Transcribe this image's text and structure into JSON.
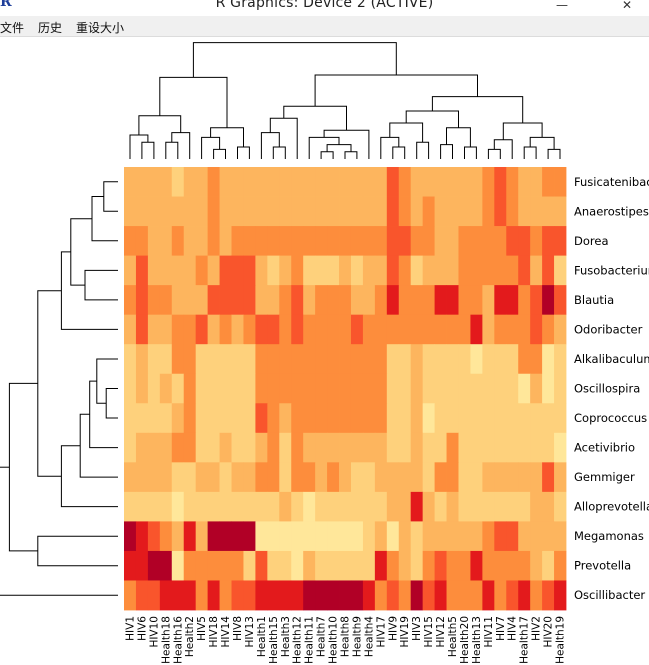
{
  "window": {
    "title": "R Graphics: Device 2 (ACTIVE)",
    "minimize_glyph": "—",
    "close_glyph": "✕"
  },
  "menu": {
    "items": [
      "文件",
      "历史",
      "重设大小"
    ]
  },
  "icons": {
    "app": "r-logo-icon"
  },
  "chart_data": {
    "type": "heatmap",
    "row_labels": [
      "Fusicatenibacter",
      "Anaerostipes",
      "Dorea",
      "Fusobacterium",
      "Blautia",
      "Odoribacter",
      "Alkalibaculum",
      "Oscillospira",
      "Coprococcus",
      "Acetivibrio",
      "Gemmiger",
      "Alloprevotella",
      "Megamonas",
      "Prevotella",
      "Oscillibacter"
    ],
    "col_labels": [
      "HIV1",
      "HIV6",
      "HIV10",
      "Health18",
      "Health16",
      "Health2",
      "HIV5",
      "HIV18",
      "HIV14",
      "HIV8",
      "HIV13",
      "Health1",
      "Health15",
      "Health3",
      "Health12",
      "Health11",
      "Health7",
      "Health10",
      "Health8",
      "Health9",
      "Health4",
      "HIV17",
      "HIV9",
      "HIV19",
      "HIV3",
      "HIV15",
      "HIV12",
      "Health5",
      "Health20",
      "Health13",
      "HIV11",
      "HIV7",
      "HIV4",
      "Health17",
      "HIV2",
      "HIV20",
      "Health19"
    ],
    "color_scale": {
      "levels": 7,
      "colors": [
        "#ffffcc",
        "#ffe79a",
        "#fed17c",
        "#fdb55e",
        "#fd8d3c",
        "#f9552c",
        "#e31a1c",
        "#b10026"
      ]
    },
    "values": [
      [
        3,
        3,
        3,
        3,
        2,
        3,
        3,
        4,
        3,
        3,
        3,
        3,
        3,
        3,
        3,
        3,
        3,
        3,
        3,
        3,
        3,
        3,
        5,
        4,
        3,
        3,
        3,
        3,
        3,
        3,
        4,
        5,
        4,
        3,
        3,
        4,
        4
      ],
      [
        3,
        3,
        3,
        3,
        3,
        3,
        3,
        4,
        3,
        3,
        3,
        3,
        3,
        3,
        3,
        3,
        3,
        3,
        3,
        3,
        3,
        3,
        5,
        4,
        3,
        4,
        3,
        3,
        3,
        3,
        4,
        5,
        4,
        3,
        3,
        3,
        3
      ],
      [
        4,
        4,
        3,
        3,
        4,
        3,
        3,
        4,
        3,
        4,
        4,
        4,
        4,
        4,
        4,
        4,
        4,
        4,
        4,
        4,
        4,
        4,
        5,
        5,
        4,
        4,
        3,
        3,
        4,
        4,
        4,
        4,
        5,
        5,
        4,
        5,
        5
      ],
      [
        3,
        5,
        3,
        3,
        3,
        3,
        4,
        3,
        5,
        5,
        5,
        3,
        2,
        3,
        4,
        2,
        2,
        2,
        3,
        2,
        3,
        3,
        5,
        4,
        2,
        3,
        3,
        3,
        4,
        4,
        4,
        4,
        4,
        5,
        3,
        5,
        2
      ],
      [
        4,
        5,
        4,
        4,
        3,
        3,
        3,
        5,
        5,
        5,
        5,
        3,
        3,
        4,
        5,
        3,
        4,
        4,
        4,
        3,
        3,
        4,
        6,
        4,
        4,
        4,
        6,
        6,
        4,
        4,
        3,
        6,
        6,
        4,
        5,
        7,
        5
      ],
      [
        3,
        5,
        3,
        3,
        4,
        4,
        5,
        3,
        4,
        3,
        4,
        5,
        5,
        4,
        5,
        4,
        4,
        4,
        4,
        5,
        4,
        4,
        4,
        4,
        4,
        4,
        4,
        4,
        4,
        6,
        3,
        4,
        4,
        4,
        5,
        4,
        3
      ],
      [
        2,
        3,
        2,
        2,
        4,
        4,
        2,
        2,
        2,
        2,
        2,
        4,
        4,
        4,
        4,
        4,
        4,
        4,
        4,
        4,
        4,
        4,
        2,
        2,
        3,
        2,
        2,
        2,
        2,
        1,
        2,
        2,
        2,
        4,
        4,
        1,
        2
      ],
      [
        2,
        3,
        2,
        3,
        2,
        4,
        2,
        2,
        2,
        2,
        2,
        4,
        4,
        4,
        4,
        4,
        4,
        4,
        4,
        4,
        4,
        4,
        2,
        2,
        3,
        2,
        2,
        2,
        2,
        2,
        2,
        2,
        2,
        1,
        3,
        1,
        2
      ],
      [
        2,
        2,
        2,
        2,
        3,
        4,
        2,
        2,
        2,
        2,
        2,
        5,
        4,
        3,
        4,
        4,
        4,
        4,
        4,
        4,
        4,
        4,
        2,
        2,
        3,
        1,
        2,
        2,
        2,
        2,
        2,
        2,
        2,
        2,
        2,
        2,
        2
      ],
      [
        2,
        3,
        3,
        3,
        4,
        4,
        2,
        2,
        3,
        2,
        2,
        3,
        4,
        2,
        4,
        3,
        3,
        3,
        3,
        3,
        3,
        3,
        2,
        2,
        3,
        2,
        2,
        4,
        2,
        2,
        2,
        2,
        2,
        2,
        2,
        2,
        1
      ],
      [
        3,
        3,
        3,
        3,
        2,
        2,
        3,
        3,
        2,
        3,
        3,
        4,
        4,
        2,
        4,
        4,
        3,
        4,
        3,
        2,
        2,
        3,
        3,
        3,
        3,
        2,
        4,
        4,
        2,
        2,
        3,
        3,
        3,
        3,
        3,
        5,
        3
      ],
      [
        2,
        2,
        2,
        2,
        1,
        2,
        2,
        2,
        2,
        2,
        2,
        2,
        2,
        3,
        2,
        1,
        2,
        2,
        2,
        2,
        2,
        2,
        3,
        3,
        6,
        3,
        2,
        3,
        2,
        2,
        2,
        2,
        2,
        2,
        3,
        3,
        2
      ],
      [
        7,
        6,
        5,
        4,
        3,
        6,
        3,
        7,
        7,
        7,
        7,
        1,
        1,
        1,
        1,
        1,
        1,
        1,
        1,
        1,
        2,
        3,
        1,
        3,
        2,
        3,
        3,
        3,
        3,
        3,
        4,
        5,
        5,
        3,
        3,
        3,
        3
      ],
      [
        6,
        6,
        7,
        7,
        1,
        4,
        4,
        4,
        4,
        4,
        2,
        5,
        2,
        2,
        1,
        3,
        2,
        2,
        2,
        2,
        2,
        6,
        4,
        3,
        2,
        4,
        5,
        4,
        4,
        6,
        4,
        4,
        4,
        4,
        3,
        2,
        4
      ],
      [
        4,
        5,
        5,
        6,
        6,
        6,
        4,
        6,
        4,
        5,
        5,
        6,
        6,
        6,
        6,
        7,
        7,
        7,
        7,
        7,
        6,
        4,
        5,
        4,
        7,
        5,
        6,
        4,
        4,
        4,
        6,
        4,
        5,
        6,
        4,
        5,
        6
      ]
    ]
  }
}
